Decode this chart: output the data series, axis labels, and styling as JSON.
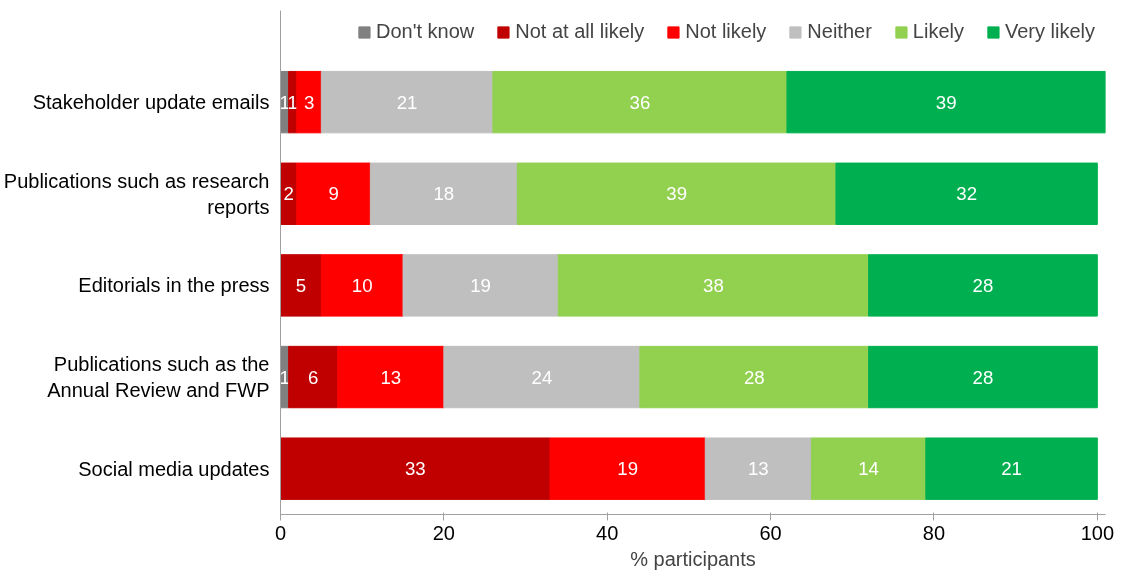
{
  "chart_data": {
    "type": "bar",
    "orientation": "horizontal",
    "stacked": true,
    "categories": [
      "Stakeholder update emails",
      "Publications such as research reports",
      "Editorials in the press",
      "Publications such as the Annual Review and FWP",
      "Social media updates"
    ],
    "series": [
      {
        "name": "Don't know",
        "color": "#808080",
        "values": [
          1,
          0,
          0,
          1,
          0
        ],
        "value_labels": [
          "1",
          null,
          null,
          "1",
          null
        ]
      },
      {
        "name": "Not at all likely",
        "color": "#c00000",
        "values": [
          1,
          2,
          5,
          6,
          33
        ],
        "value_labels": [
          "1",
          "2",
          "5",
          "6",
          "33"
        ]
      },
      {
        "name": "Not likely",
        "color": "#ff0000",
        "values": [
          3,
          9,
          10,
          13,
          19
        ],
        "value_labels": [
          "3",
          "9",
          "10",
          "13",
          "19"
        ]
      },
      {
        "name": "Neither",
        "color": "#bfbfbf",
        "values": [
          21,
          18,
          19,
          24,
          13
        ],
        "value_labels": [
          "21",
          "18",
          "19",
          "24",
          "13"
        ]
      },
      {
        "name": "Likely",
        "color": "#92d050",
        "values": [
          36,
          39,
          38,
          28,
          14
        ],
        "value_labels": [
          "36",
          "39",
          "38",
          "28",
          "14"
        ]
      },
      {
        "name": "Very likely",
        "color": "#00b050",
        "values": [
          39,
          32,
          28,
          28,
          21
        ],
        "value_labels": [
          "39",
          "32",
          "28",
          "28",
          "21"
        ]
      }
    ],
    "xlabel": "% participants",
    "xlim": [
      0,
      101
    ],
    "xticks": [
      0,
      20,
      40,
      60,
      80,
      100
    ],
    "grid": false,
    "legend": "top"
  }
}
